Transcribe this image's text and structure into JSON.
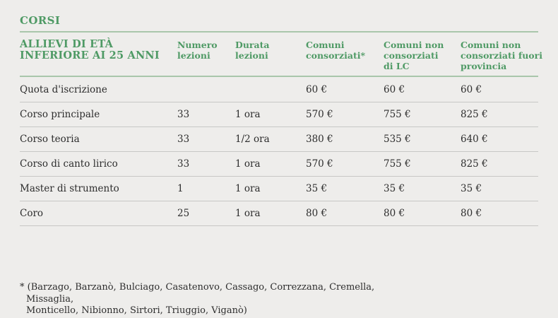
{
  "header": {
    "title": "CORSI"
  },
  "table": {
    "group_title": "ALLIEVI DI ETÀ\nINFERIORE AI 25 ANNI",
    "columns": {
      "num": "Numero\nlezioni",
      "dur": "Durata\nlezioni",
      "p1": "Comuni\nconsorziati*",
      "p2": "Comuni non\nconsorziati\ndi LC",
      "p3": "Comuni non\nconsorziati fuori\nprovincia"
    },
    "rows": [
      {
        "label": "Quota d'iscrizione",
        "num": "",
        "dur": "",
        "p1": "60 €",
        "p2": "60 €",
        "p3": "60 €"
      },
      {
        "label": "Corso principale",
        "num": "33",
        "dur": "1 ora",
        "p1": "570 €",
        "p2": "755 €",
        "p3": "825 €"
      },
      {
        "label": "Corso teoria",
        "num": "33",
        "dur": "1/2 ora",
        "p1": "380 €",
        "p2": "535 €",
        "p3": "640 €"
      },
      {
        "label": "Corso di canto lirico",
        "num": "33",
        "dur": "1 ora",
        "p1": "570 €",
        "p2": "755 €",
        "p3": "825 €"
      },
      {
        "label": "Master di strumento",
        "num": "1",
        "dur": "1 ora",
        "p1": "35 €",
        "p2": "35 €",
        "p3": "35 €"
      },
      {
        "label": "Coro",
        "num": "25",
        "dur": "1 ora",
        "p1": "80 €",
        "p2": "80 €",
        "p3": "80 €"
      }
    ]
  },
  "footnote": {
    "text": "* (Barzago, Barzanò, Bulciago, Casatenovo, Cassago, Correzzana, Cremella, Missaglia,\nMonticello, Nibionno, Sirtori, Triuggio, Viganò)"
  },
  "colors": {
    "accent_green": "#4f9a65",
    "rule_green": "#a9c6ab",
    "divider_gray": "#c7c7c5",
    "background": "#eeedeb",
    "text": "#2d2d2d"
  }
}
